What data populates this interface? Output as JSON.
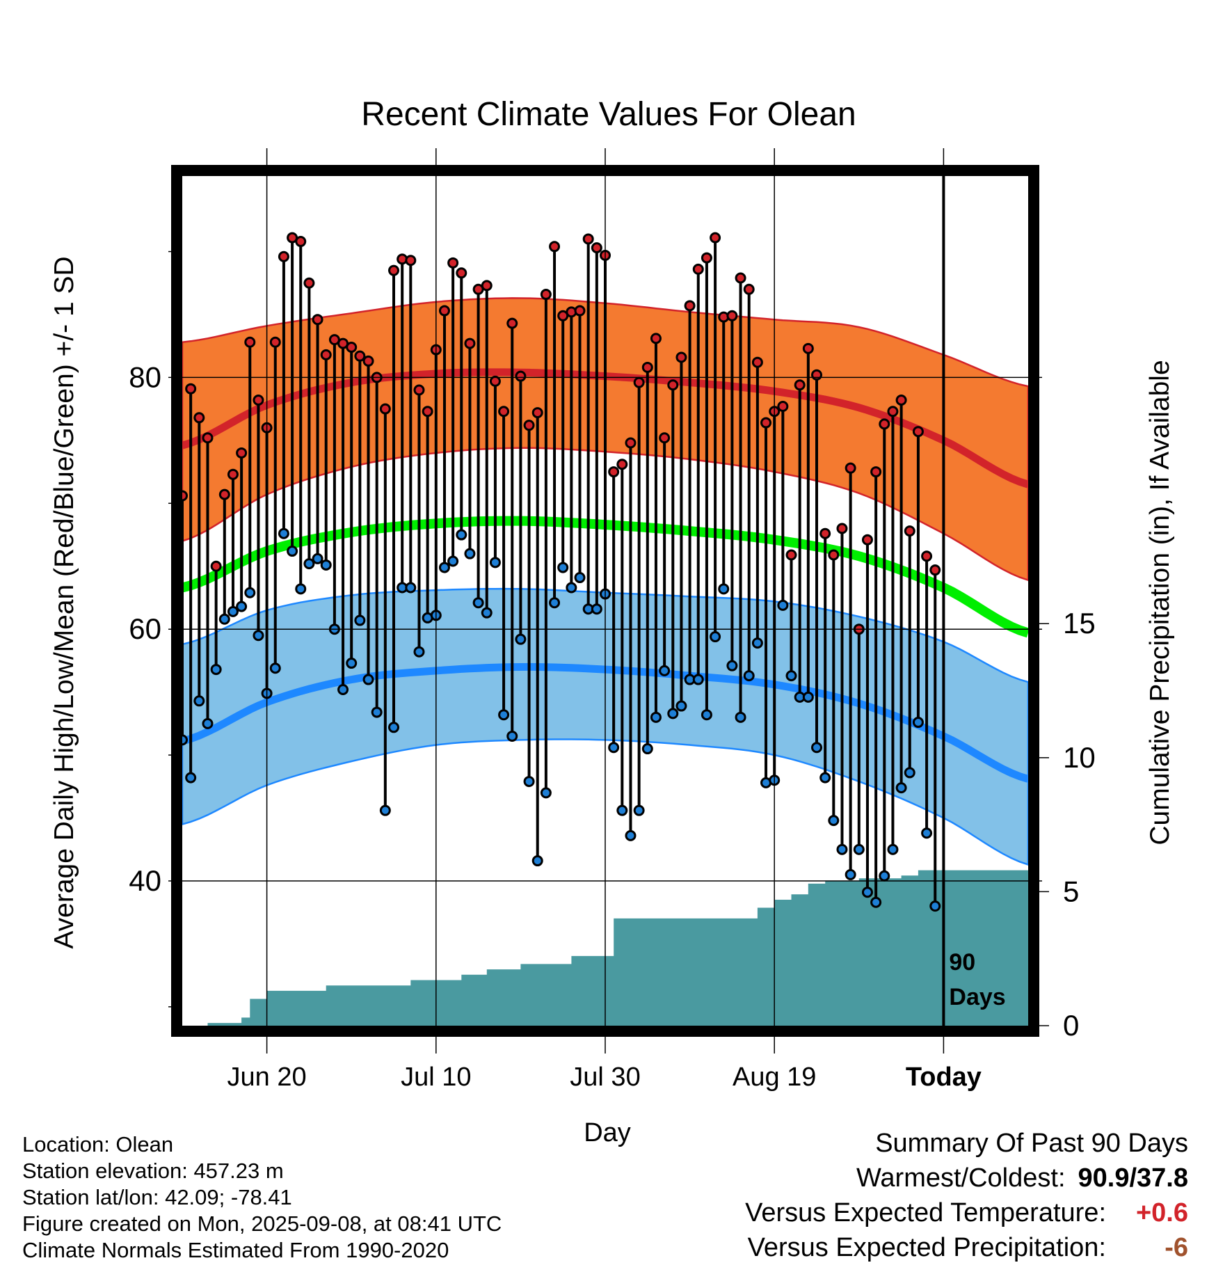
{
  "chart_data": {
    "type": "line",
    "title": "Recent Climate Values For Olean",
    "xlabel": "Day",
    "ylabel": "Average Daily High/Low/Mean (Red/Blue/Green) +/- 1 SD",
    "y2label": "Cumulative Precipitation (in), If Available",
    "x_tick_labels": [
      "Jun 20",
      "Jul 10",
      "Jul 30",
      "Aug 19",
      "Today"
    ],
    "y_ticks": [
      40,
      60,
      80
    ],
    "y_range": [
      28.5,
      96
    ],
    "y2_ticks": [
      0,
      5,
      10,
      15
    ],
    "y2_range": [
      0,
      31.7
    ],
    "grid": true,
    "today_marker_label": [
      "90",
      "Days"
    ],
    "colors": {
      "high_band": "#f47a30",
      "high_line": "#d2232a",
      "low_band": "#82c1e8",
      "low_line": "#1e88ff",
      "mean_line": "#00ee00",
      "precip_fill": "#4a9aa0",
      "high_marker": "#d2232a",
      "low_marker": "#1e7fd6"
    },
    "day_index_note_labels": "x values are days since the first plotted day; Today is day 90",
    "normals": {
      "x": [
        0,
        10,
        20,
        30,
        40,
        50,
        60,
        70,
        80,
        90,
        100
      ],
      "high_mean": [
        74.6,
        77.8,
        79.6,
        80.3,
        80.4,
        80.1,
        79.6,
        78.9,
        77.6,
        75.0,
        71.5
      ],
      "high_upper": [
        82.8,
        84.1,
        85.1,
        86.0,
        86.3,
        85.9,
        85.2,
        84.6,
        84.0,
        81.8,
        79.3
      ],
      "high_lower": [
        67.0,
        70.7,
        72.9,
        74.0,
        74.4,
        74.1,
        73.5,
        72.5,
        70.8,
        67.6,
        63.9
      ],
      "mean": [
        63.3,
        66.2,
        67.7,
        68.4,
        68.6,
        68.3,
        67.8,
        67.1,
        65.8,
        63.3,
        59.7
      ],
      "low_mean": [
        51.1,
        54.2,
        56.0,
        56.7,
        57.0,
        56.8,
        56.3,
        55.6,
        54.1,
        51.5,
        48.1
      ],
      "low_upper": [
        58.8,
        61.5,
        62.7,
        63.1,
        63.2,
        62.9,
        62.6,
        62.2,
        61.0,
        59.0,
        55.8
      ],
      "low_lower": [
        44.5,
        47.6,
        49.5,
        50.8,
        51.2,
        51.2,
        50.8,
        50.0,
        47.9,
        45.0,
        41.3
      ]
    },
    "daily": [
      {
        "x": 0,
        "high": 70.6,
        "low": 51.2
      },
      {
        "x": 1,
        "high": 79.1,
        "low": 48.2
      },
      {
        "x": 2,
        "high": 76.8,
        "low": 54.3
      },
      {
        "x": 3,
        "high": 75.2,
        "low": 52.5
      },
      {
        "x": 4,
        "high": 65.0,
        "low": 56.8
      },
      {
        "x": 5,
        "high": 70.7,
        "low": 60.8
      },
      {
        "x": 6,
        "high": 72.3,
        "low": 61.4
      },
      {
        "x": 7,
        "high": 74.0,
        "low": 61.8
      },
      {
        "x": 8,
        "high": 82.8,
        "low": 62.9
      },
      {
        "x": 9,
        "high": 78.2,
        "low": 59.5
      },
      {
        "x": 10,
        "high": 76.0,
        "low": 54.9
      },
      {
        "x": 11,
        "high": 82.8,
        "low": 56.9
      },
      {
        "x": 12,
        "high": 89.6,
        "low": 67.6
      },
      {
        "x": 13,
        "high": 91.1,
        "low": 66.2
      },
      {
        "x": 14,
        "high": 90.8,
        "low": 63.2
      },
      {
        "x": 15,
        "high": 87.5,
        "low": 65.2
      },
      {
        "x": 16,
        "high": 84.6,
        "low": 65.6
      },
      {
        "x": 17,
        "high": 81.8,
        "low": 65.1
      },
      {
        "x": 18,
        "high": 83.0,
        "low": 60.0
      },
      {
        "x": 19,
        "high": 82.7,
        "low": 55.2
      },
      {
        "x": 20,
        "high": 82.4,
        "low": 57.3
      },
      {
        "x": 21,
        "high": 81.7,
        "low": 60.7
      },
      {
        "x": 22,
        "high": 81.3,
        "low": 56.0
      },
      {
        "x": 23,
        "high": 80.0,
        "low": 53.4
      },
      {
        "x": 24,
        "high": 77.5,
        "low": 45.6
      },
      {
        "x": 25,
        "high": 88.5,
        "low": 52.2
      },
      {
        "x": 26,
        "high": 89.4,
        "low": 63.3
      },
      {
        "x": 27,
        "high": 89.3,
        "low": 63.3
      },
      {
        "x": 28,
        "high": 79.0,
        "low": 58.2
      },
      {
        "x": 29,
        "high": 77.3,
        "low": 60.9
      },
      {
        "x": 30,
        "high": 82.2,
        "low": 61.1
      },
      {
        "x": 31,
        "high": 85.3,
        "low": 64.9
      },
      {
        "x": 32,
        "high": 89.1,
        "low": 65.4
      },
      {
        "x": 33,
        "high": 88.3,
        "low": 67.5
      },
      {
        "x": 34,
        "high": 82.7,
        "low": 66.0
      },
      {
        "x": 35,
        "high": 87.0,
        "low": 62.1
      },
      {
        "x": 36,
        "high": 87.3,
        "low": 61.3
      },
      {
        "x": 37,
        "high": 79.7,
        "low": 65.3
      },
      {
        "x": 38,
        "high": 77.3,
        "low": 53.2
      },
      {
        "x": 39,
        "high": 84.3,
        "low": 51.5
      },
      {
        "x": 40,
        "high": 80.1,
        "low": 59.2
      },
      {
        "x": 41,
        "high": 76.2,
        "low": 47.9
      },
      {
        "x": 42,
        "high": 77.2,
        "low": 41.6
      },
      {
        "x": 43,
        "high": 86.6,
        "low": 47.0
      },
      {
        "x": 44,
        "high": 90.4,
        "low": 62.1
      },
      {
        "x": 45,
        "high": 84.9,
        "low": 64.9
      },
      {
        "x": 46,
        "high": 85.2,
        "low": 63.3
      },
      {
        "x": 47,
        "high": 85.3,
        "low": 64.1
      },
      {
        "x": 48,
        "high": 91.0,
        "low": 61.6
      },
      {
        "x": 49,
        "high": 90.3,
        "low": 61.6
      },
      {
        "x": 50,
        "high": 89.7,
        "low": 62.8
      },
      {
        "x": 51,
        "high": 72.5,
        "low": 50.6
      },
      {
        "x": 52,
        "high": 73.1,
        "low": 45.6
      },
      {
        "x": 53,
        "high": 74.8,
        "low": 43.6
      },
      {
        "x": 54,
        "high": 79.6,
        "low": 45.6
      },
      {
        "x": 55,
        "high": 80.8,
        "low": 50.5
      },
      {
        "x": 56,
        "high": 83.1,
        "low": 53.0
      },
      {
        "x": 57,
        "high": 75.2,
        "low": 56.7
      },
      {
        "x": 58,
        "high": 79.4,
        "low": 53.3
      },
      {
        "x": 59,
        "high": 81.6,
        "low": 53.9
      },
      {
        "x": 60,
        "high": 85.7,
        "low": 56.0
      },
      {
        "x": 61,
        "high": 88.6,
        "low": 56.0
      },
      {
        "x": 62,
        "high": 89.5,
        "low": 53.2
      },
      {
        "x": 63,
        "high": 91.1,
        "low": 59.4
      },
      {
        "x": 64,
        "high": 84.8,
        "low": 63.2
      },
      {
        "x": 65,
        "high": 84.9,
        "low": 57.1
      },
      {
        "x": 66,
        "high": 87.9,
        "low": 53.0
      },
      {
        "x": 67,
        "high": 87.0,
        "low": 56.3
      },
      {
        "x": 68,
        "high": 81.2,
        "low": 58.9
      },
      {
        "x": 69,
        "high": 76.4,
        "low": 47.8
      },
      {
        "x": 70,
        "high": 77.3,
        "low": 48.0
      },
      {
        "x": 71,
        "high": 77.7,
        "low": 61.9
      },
      {
        "x": 72,
        "high": 65.9,
        "low": 56.3
      },
      {
        "x": 73,
        "high": 79.4,
        "low": 54.6
      },
      {
        "x": 74,
        "high": 82.3,
        "low": 54.6
      },
      {
        "x": 75,
        "high": 80.2,
        "low": 50.6
      },
      {
        "x": 76,
        "high": 67.6,
        "low": 48.2
      },
      {
        "x": 77,
        "high": 65.9,
        "low": 44.8
      },
      {
        "x": 78,
        "high": 68.0,
        "low": 42.5
      },
      {
        "x": 79,
        "high": 72.8,
        "low": 40.5
      },
      {
        "x": 80,
        "high": 60.0,
        "low": 42.5
      },
      {
        "x": 81,
        "high": 67.1,
        "low": 39.1
      },
      {
        "x": 82,
        "high": 72.5,
        "low": 38.3
      },
      {
        "x": 83,
        "high": 76.3,
        "low": 40.4
      },
      {
        "x": 84,
        "high": 77.3,
        "low": 42.5
      },
      {
        "x": 85,
        "high": 78.2,
        "low": 47.4
      },
      {
        "x": 86,
        "high": 67.8,
        "low": 48.6
      },
      {
        "x": 87,
        "high": 75.7,
        "low": 52.6
      },
      {
        "x": 88,
        "high": 65.8,
        "low": 43.8
      },
      {
        "x": 89,
        "high": 64.7,
        "low": 38.0
      }
    ],
    "cumulative_precipitation_in": {
      "x": [
        0,
        3,
        7,
        8,
        10,
        15,
        17,
        27,
        33,
        36,
        40,
        46,
        49,
        51,
        67,
        68,
        70,
        72,
        74,
        76,
        80,
        85,
        87,
        100
      ],
      "y": [
        0,
        0.1,
        0.3,
        1.0,
        1.3,
        1.3,
        1.5,
        1.7,
        1.9,
        2.1,
        2.3,
        2.6,
        2.6,
        4.0,
        4.0,
        4.4,
        4.7,
        4.9,
        5.3,
        5.4,
        5.5,
        5.6,
        5.8,
        5.8
      ]
    }
  },
  "footer": {
    "location": "Location: Olean",
    "elevation": "Station elevation: 457.23 m",
    "latlon": "Station lat/lon: 42.09; -78.41",
    "created": "Figure created on Mon, 2025-09-08, at 08:41 UTC",
    "normals_source": "Climate Normals Estimated From 1990-2020"
  },
  "summary": {
    "title": "Summary Of Past 90 Days",
    "warmest_coldest_label": "Warmest/Coldest:",
    "warmest_coldest_value": "90.9/37.8",
    "vs_temp_label": "Versus Expected Temperature:",
    "vs_temp_value": "+0.6",
    "vs_temp_color": "#d2232a",
    "vs_precip_label": "Versus Expected Precipitation:",
    "vs_precip_value": "-6",
    "vs_precip_color": "#a0522d"
  }
}
